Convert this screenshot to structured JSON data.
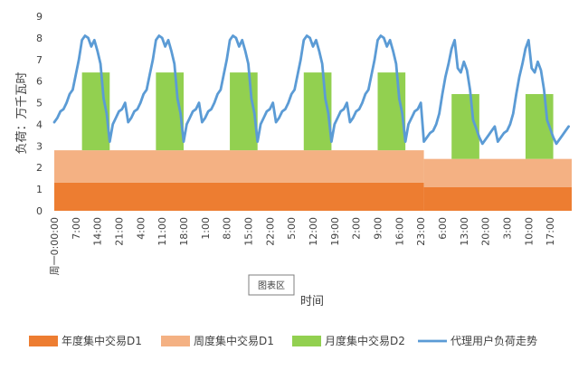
{
  "chart_data": {
    "type": "area",
    "ylabel": "负荷：万千瓦时",
    "xlabel": "时间",
    "ylim": [
      0,
      9
    ],
    "yticks": [
      "0",
      "1",
      "2",
      "3",
      "4",
      "5",
      "6",
      "7",
      "8",
      "9"
    ],
    "x_tick_labels": [
      "周一0:00:00",
      "7:00",
      "14:00",
      "21:00",
      "4:00",
      "11:00",
      "18:00",
      "1:00",
      "8:00",
      "15:00",
      "22:00",
      "5:00",
      "12:00",
      "19:00",
      "2:00",
      "9:00",
      "16:00",
      "23:00",
      "6:00",
      "13:00",
      "20:00",
      "3:00",
      "10:00",
      "17:00"
    ],
    "hours_total": 168,
    "legend_position": "bottom",
    "chart_area_button": "图表区",
    "series": [
      {
        "name": "年度集中交易D1",
        "kind": "stacked-band",
        "color": "#ED7D31",
        "segments": [
          {
            "from_hour": 0,
            "to_hour": 120,
            "value": 1.3
          },
          {
            "from_hour": 120,
            "to_hour": 168,
            "value": 1.1
          }
        ]
      },
      {
        "name": "周度集中交易D1",
        "kind": "stacked-band",
        "color": "#F4B183",
        "segments": [
          {
            "from_hour": 0,
            "to_hour": 120,
            "value": 1.5
          },
          {
            "from_hour": 120,
            "to_hour": 168,
            "value": 1.3
          }
        ]
      },
      {
        "name": "月度集中交易D2",
        "kind": "stacked-block",
        "color": "#92D050",
        "segments": [
          {
            "from_hour": 9,
            "to_hour": 18,
            "value": 3.6
          },
          {
            "from_hour": 33,
            "to_hour": 42,
            "value": 3.6
          },
          {
            "from_hour": 57,
            "to_hour": 66,
            "value": 3.6
          },
          {
            "from_hour": 81,
            "to_hour": 90,
            "value": 3.6
          },
          {
            "from_hour": 105,
            "to_hour": 114,
            "value": 3.6
          },
          {
            "from_hour": 129,
            "to_hour": 138,
            "value": 3.0
          },
          {
            "from_hour": 153,
            "to_hour": 162,
            "value": 3.0
          }
        ]
      },
      {
        "name": "代理用户负荷走势",
        "kind": "line",
        "color": "#5B9BD5",
        "weekday_profile": [
          4.1,
          4.3,
          4.6,
          4.7,
          5.0,
          5.4,
          5.6,
          6.3,
          7.0,
          7.9,
          8.1,
          8.0,
          7.6,
          7.9,
          7.4,
          6.8,
          5.2,
          4.5,
          3.2,
          4.0,
          4.3,
          4.6,
          4.7,
          5.0
        ],
        "weekend_profile": [
          3.2,
          3.4,
          3.6,
          3.7,
          4.0,
          4.5,
          5.4,
          6.2,
          6.8,
          7.5,
          7.9,
          6.6,
          6.4,
          6.9,
          6.5,
          5.6,
          4.2,
          3.8,
          3.4,
          3.1,
          3.3,
          3.5,
          3.7,
          3.9
        ],
        "weekday_days": 5,
        "weekend_days": 2
      }
    ]
  }
}
